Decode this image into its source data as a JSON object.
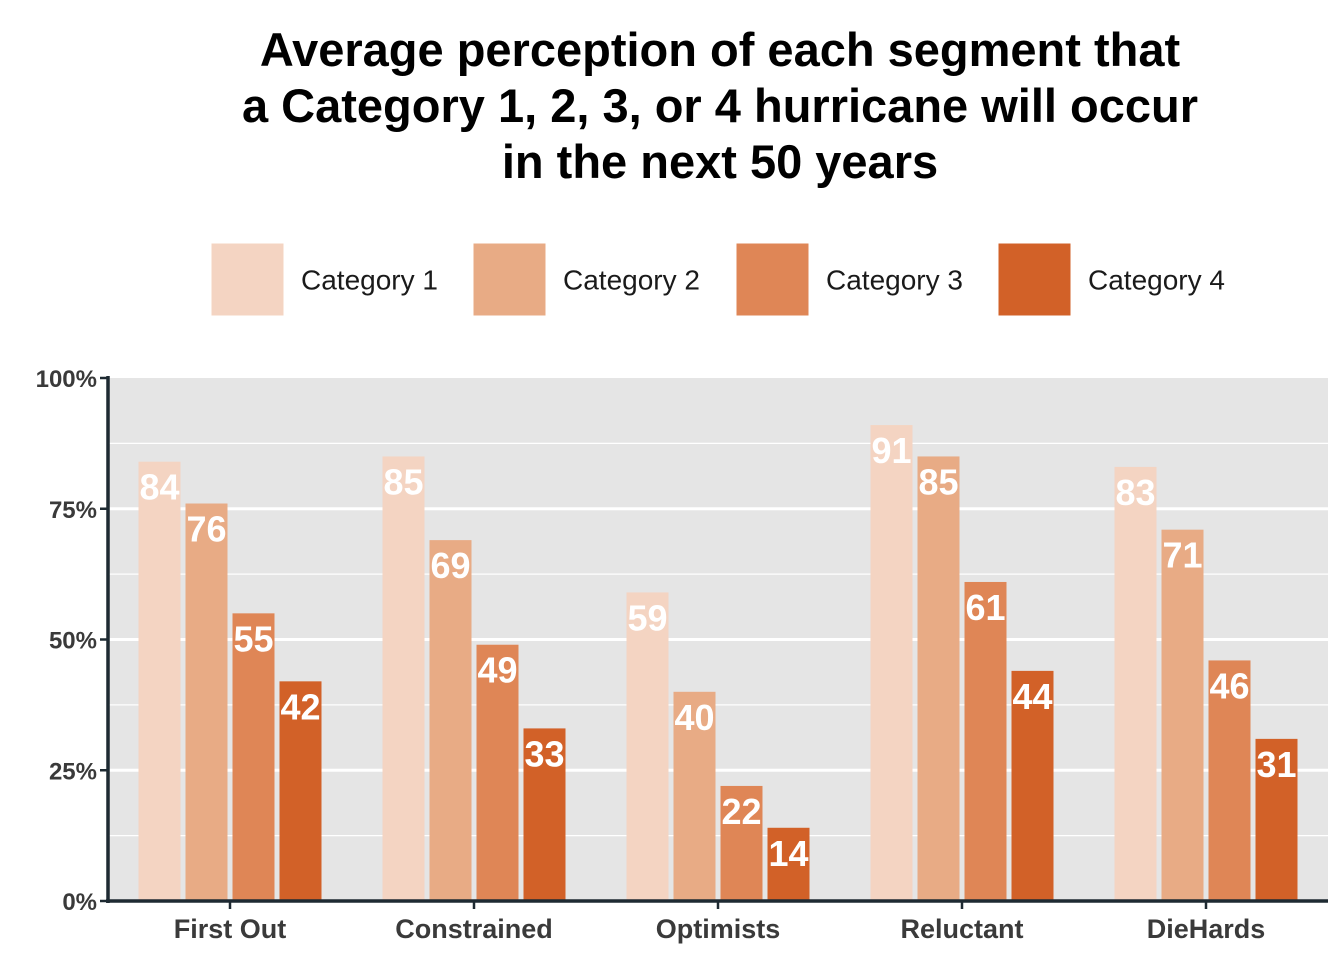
{
  "chart_data": {
    "type": "bar",
    "title_lines": [
      "Average perception of each segment that",
      "a Category 1, 2, 3, or 4 hurricane will occur",
      "in the next 50 years"
    ],
    "categories": [
      "First Out",
      "Constrained",
      "Optimists",
      "Reluctant",
      "DieHards"
    ],
    "series": [
      {
        "name": "Category 1",
        "color": "#f4d4c2",
        "values": [
          84,
          85,
          59,
          91,
          83
        ]
      },
      {
        "name": "Category 2",
        "color": "#e8ab85",
        "values": [
          76,
          69,
          40,
          85,
          71
        ]
      },
      {
        "name": "Category 3",
        "color": "#df8656",
        "values": [
          55,
          49,
          22,
          61,
          46
        ]
      },
      {
        "name": "Category 4",
        "color": "#d26128",
        "values": [
          42,
          33,
          14,
          44,
          31
        ]
      }
    ],
    "y_ticks": [
      {
        "value": 0,
        "label": "0%"
      },
      {
        "value": 25,
        "label": "25%"
      },
      {
        "value": 50,
        "label": "50%"
      },
      {
        "value": 75,
        "label": "75%"
      },
      {
        "value": 100,
        "label": "100%"
      }
    ],
    "ylim": [
      0,
      100
    ],
    "grid": true,
    "legend_position": "top",
    "panel_color": "#e5e5e5"
  }
}
